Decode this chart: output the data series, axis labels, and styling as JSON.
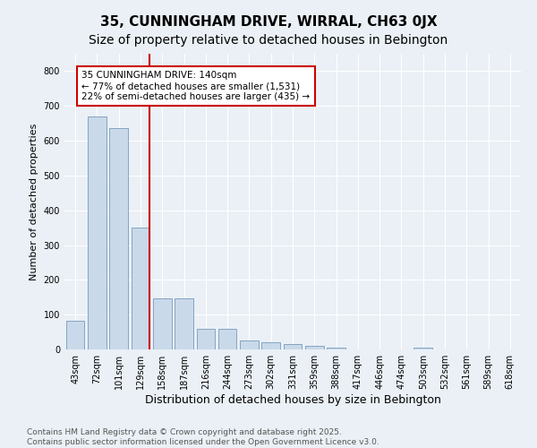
{
  "title": "35, CUNNINGHAM DRIVE, WIRRAL, CH63 0JX",
  "subtitle": "Size of property relative to detached houses in Bebington",
  "xlabel": "Distribution of detached houses by size in Bebington",
  "ylabel": "Number of detached properties",
  "categories": [
    "43sqm",
    "72sqm",
    "101sqm",
    "129sqm",
    "158sqm",
    "187sqm",
    "216sqm",
    "244sqm",
    "273sqm",
    "302sqm",
    "331sqm",
    "359sqm",
    "388sqm",
    "417sqm",
    "446sqm",
    "474sqm",
    "503sqm",
    "532sqm",
    "561sqm",
    "589sqm",
    "618sqm"
  ],
  "values": [
    83,
    670,
    635,
    350,
    148,
    148,
    60,
    60,
    27,
    20,
    15,
    10,
    5,
    0,
    0,
    0,
    5,
    0,
    0,
    0,
    0
  ],
  "bar_color": "#c9d9ea",
  "bar_edgecolor": "#7799bb",
  "vline_color": "#cc0000",
  "annotation_line1": "35 CUNNINGHAM DRIVE: 140sqm",
  "annotation_line2": "← 77% of detached houses are smaller (1,531)",
  "annotation_line3": "22% of semi-detached houses are larger (435) →",
  "annotation_box_color": "white",
  "annotation_box_edgecolor": "#cc0000",
  "ylim": [
    0,
    850
  ],
  "yticks": [
    0,
    100,
    200,
    300,
    400,
    500,
    600,
    700,
    800
  ],
  "bg_color": "#eaf0f6",
  "grid_color": "#ffffff",
  "footer_text": "Contains HM Land Registry data © Crown copyright and database right 2025.\nContains public sector information licensed under the Open Government Licence v3.0.",
  "title_fontsize": 11,
  "subtitle_fontsize": 10,
  "xlabel_fontsize": 9,
  "ylabel_fontsize": 8,
  "tick_fontsize": 7,
  "annotation_fontsize": 7.5,
  "footer_fontsize": 6.5
}
